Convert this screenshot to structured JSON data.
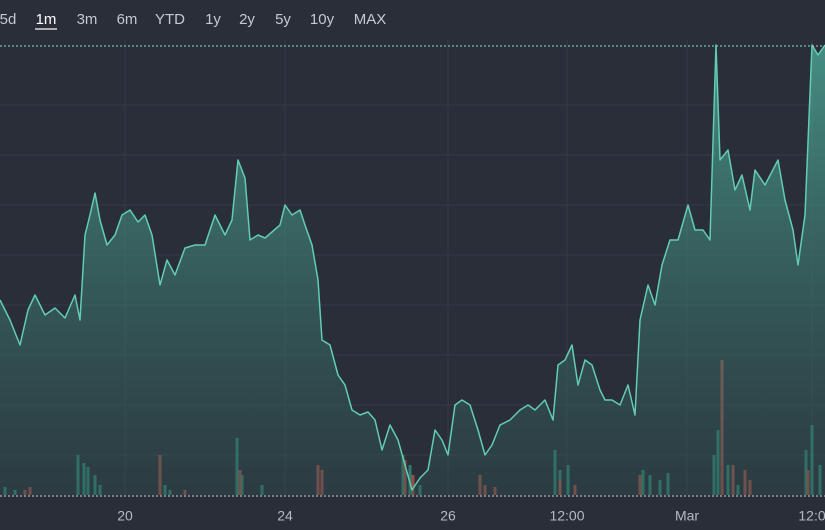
{
  "chart_data": {
    "type": "area",
    "range_buttons": [
      "5d",
      "1m",
      "3m",
      "6m",
      "YTD",
      "1y",
      "2y",
      "5y",
      "10y",
      "MAX"
    ],
    "selected_range": "1m",
    "color": "#62cdb4",
    "xlim": [
      0,
      825
    ],
    "ylim": [
      0,
      450
    ],
    "xticks": [
      {
        "value": 125,
        "label": "20"
      },
      {
        "value": 285,
        "label": "24"
      },
      {
        "value": 448,
        "label": "26"
      },
      {
        "value": 567,
        "label": "12:00"
      },
      {
        "value": 687,
        "label": "Mar"
      },
      {
        "value": 812,
        "label": "12:0"
      }
    ],
    "x": [
      0,
      10,
      20,
      28,
      35,
      45,
      55,
      65,
      75,
      80,
      85,
      90,
      95,
      100,
      107,
      115,
      122,
      130,
      138,
      145,
      152,
      160,
      167,
      175,
      185,
      195,
      205,
      215,
      225,
      232,
      238,
      245,
      250,
      258,
      265,
      272,
      280,
      285,
      292,
      300,
      305,
      312,
      318,
      322,
      330,
      338,
      345,
      352,
      360,
      368,
      375,
      382,
      390,
      398,
      405,
      412,
      420,
      428,
      435,
      442,
      448,
      455,
      462,
      470,
      478,
      485,
      492,
      500,
      510,
      520,
      528,
      535,
      545,
      553,
      558,
      565,
      572,
      578,
      585,
      592,
      600,
      605,
      612,
      620,
      628,
      635,
      640,
      648,
      655,
      662,
      670,
      678,
      688,
      695,
      703,
      710,
      716,
      720,
      728,
      735,
      742,
      750,
      755,
      765,
      778,
      785,
      793,
      798,
      805,
      812,
      818,
      825
    ],
    "values": [
      195,
      175,
      150,
      185,
      200,
      180,
      187,
      177,
      200,
      175,
      260,
      280,
      302,
      275,
      250,
      260,
      280,
      285,
      273,
      280,
      260,
      210,
      235,
      220,
      247,
      250,
      250,
      280,
      260,
      275,
      335,
      317,
      255,
      260,
      257,
      263,
      270,
      290,
      280,
      285,
      270,
      250,
      215,
      155,
      150,
      120,
      110,
      85,
      80,
      83,
      75,
      45,
      70,
      55,
      30,
      5,
      17,
      25,
      65,
      55,
      40,
      90,
      95,
      90,
      65,
      40,
      50,
      70,
      75,
      85,
      90,
      85,
      95,
      75,
      130,
      135,
      150,
      110,
      135,
      130,
      105,
      95,
      95,
      90,
      110,
      80,
      175,
      210,
      190,
      230,
      255,
      255,
      290,
      265,
      265,
      255,
      450,
      335,
      345,
      305,
      320,
      285,
      325,
      310,
      335,
      295,
      265,
      230,
      280,
      450,
      440,
      450
    ],
    "volume_up": {
      "color": "#2f8a78",
      "x": [
        5,
        15,
        78,
        84,
        88,
        95,
        100,
        165,
        170,
        237,
        242,
        262,
        403,
        410,
        420,
        555,
        560,
        568,
        643,
        650,
        660,
        668,
        714,
        718,
        728,
        738,
        806,
        812,
        820
      ],
      "values": [
        8,
        5,
        40,
        32,
        28,
        20,
        10,
        10,
        5,
        57,
        20,
        10,
        40,
        30,
        10,
        45,
        25,
        30,
        25,
        20,
        15,
        22,
        40,
        65,
        30,
        10,
        45,
        70,
        30
      ]
    },
    "volume_down": {
      "color": "#a8524a",
      "x": [
        25,
        30,
        160,
        185,
        240,
        318,
        322,
        405,
        413,
        480,
        485,
        495,
        560,
        575,
        640,
        722,
        733,
        745,
        750,
        808
      ],
      "values": [
        5,
        8,
        40,
        5,
        25,
        30,
        25,
        35,
        20,
        20,
        10,
        8,
        15,
        10,
        20,
        135,
        30,
        25,
        15,
        25
      ]
    },
    "vlim": [
      0,
      150
    ]
  }
}
